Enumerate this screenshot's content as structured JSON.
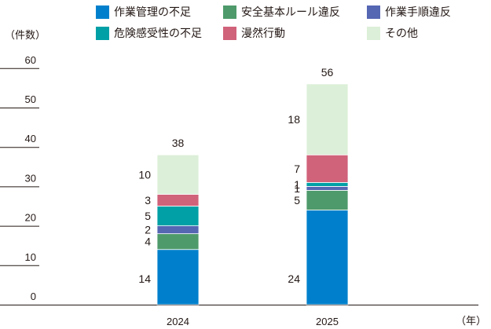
{
  "legend": [
    {
      "key": "mgmt",
      "label": "作業管理の不足",
      "color": "#0080cc"
    },
    {
      "key": "safety",
      "label": "安全基本ルール違反",
      "color": "#4e9a6b"
    },
    {
      "key": "procedure",
      "label": "作業手順違反",
      "color": "#5566b3"
    },
    {
      "key": "risk",
      "label": "危険感受性の不足",
      "color": "#00a0a6"
    },
    {
      "key": "careless",
      "label": "漫然行動",
      "color": "#d0627a"
    },
    {
      "key": "other",
      "label": "その他",
      "color": "#dcefd8"
    }
  ],
  "y_unit": "（件数）",
  "x_unit": "（年）",
  "chart_data": {
    "type": "bar",
    "stacked": true,
    "categories": [
      "2024",
      "2025"
    ],
    "series": [
      {
        "name": "作業管理の不足",
        "values": [
          14,
          24
        ]
      },
      {
        "name": "安全基本ルール違反",
        "values": [
          4,
          5
        ]
      },
      {
        "name": "作業手順違反",
        "values": [
          2,
          1
        ]
      },
      {
        "name": "危険感受性の不足",
        "values": [
          5,
          1
        ]
      },
      {
        "name": "漫然行動",
        "values": [
          3,
          7
        ]
      },
      {
        "name": "その他",
        "values": [
          10,
          18
        ]
      }
    ],
    "totals": [
      38,
      56
    ],
    "ylim": [
      0,
      60
    ],
    "yticks": [
      0,
      10,
      20,
      30,
      40,
      50,
      60
    ],
    "legend_position": "top"
  }
}
